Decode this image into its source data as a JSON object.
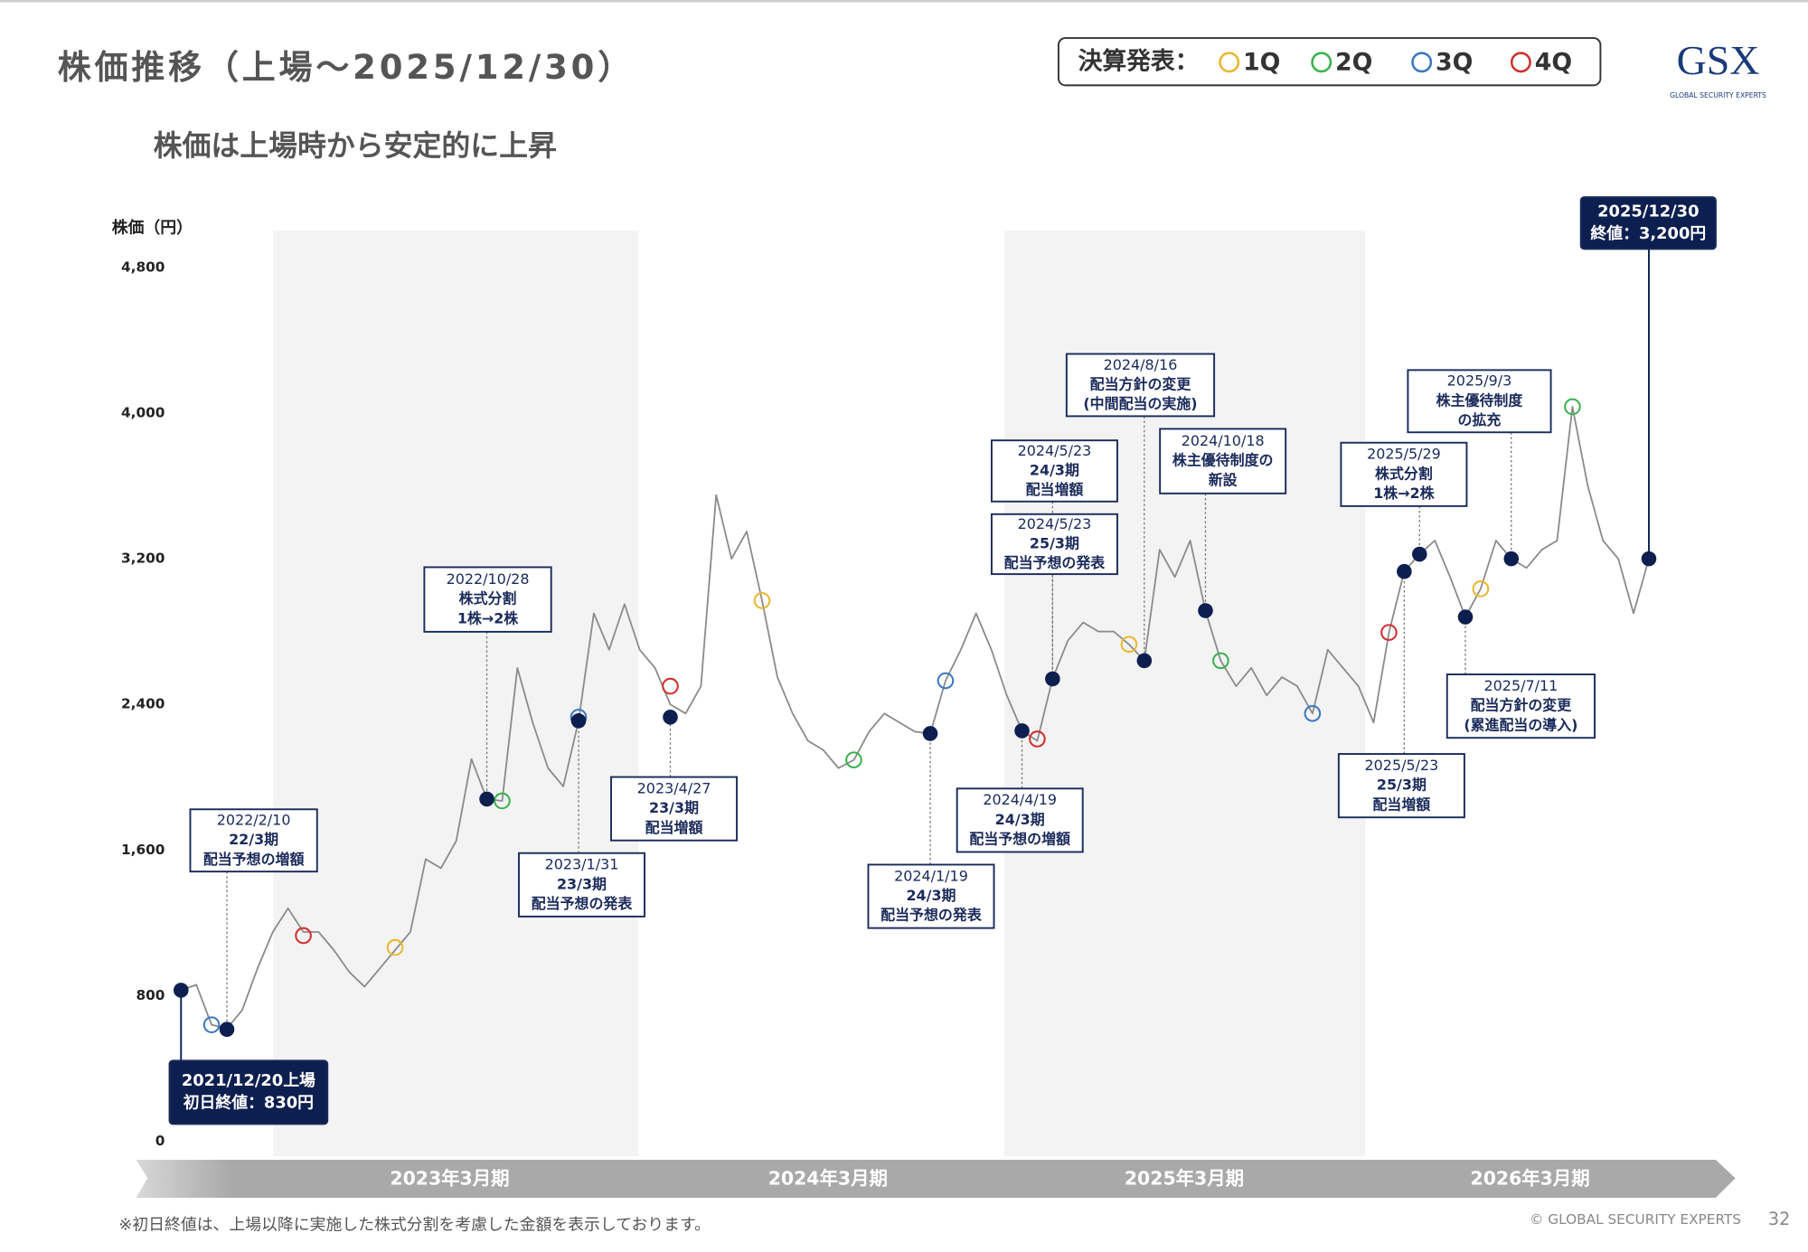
{
  "chart_data": {
    "type": "line",
    "title": "株価推移（上場～2025/12/30）",
    "subtitle": "株価は上場時から安定的に上昇",
    "y_label": "株価（円）",
    "legend_title": "決算発表：",
    "logo": "GSX",
    "logo_sub": "GLOBAL SECURITY EXPERTS",
    "footnote": "※初日終値は、上場以降に実施した株式分割を考慮した金額を表示しております。",
    "copyright": "© GLOBAL SECURITY EXPERTS",
    "page": "32",
    "periods": [
      "2023年3月期",
      "2024年3月期",
      "2025年3月期",
      "2026年3月期"
    ],
    "ylim": [
      0,
      4800
    ],
    "yticks": [
      0,
      800,
      {
        "value": 1600,
        "label": "1,600"
      },
      {
        "value": 2400,
        "label": "2,400"
      },
      {
        "value": 3200,
        "label": "3,200"
      },
      {
        "value": 4000,
        "label": "4,000"
      },
      {
        "value": 4800,
        "label": "4,800"
      }
    ],
    "categories": [
      null,
      null,
      null,
      null,
      null,
      null,
      null,
      null,
      null,
      null,
      null,
      null,
      null,
      null,
      null,
      null,
      null,
      null,
      null,
      null,
      null,
      null,
      null,
      null,
      null,
      null,
      null,
      null,
      null,
      null,
      null,
      null,
      null,
      null,
      null,
      null,
      null,
      null,
      null,
      null,
      null,
      null,
      null,
      null,
      null,
      null,
      null,
      null,
      null,
      null,
      null,
      null,
      null,
      null,
      null,
      null,
      null,
      null,
      null,
      null,
      null,
      null,
      null,
      null,
      null,
      null,
      null,
      null,
      null,
      null,
      null,
      null,
      null,
      null,
      null,
      null,
      null,
      null,
      null,
      null,
      null,
      null,
      null,
      null,
      null,
      null,
      null,
      null,
      null,
      null,
      null,
      null,
      null,
      null,
      null,
      null,
      null
    ],
    "series": [
      {
        "color": "#8a8a8a",
        "values": [
          830,
          860,
          640,
          620,
          720,
          950,
          1150,
          1280,
          1150,
          1150,
          1050,
          930,
          850,
          950,
          1050,
          1150,
          1550,
          1500,
          1650,
          2100,
          1880,
          1870,
          2600,
          2300,
          2050,
          1950,
          2310,
          2900,
          2700,
          2950,
          2700,
          2600,
          2400,
          2350,
          2500,
          3550,
          3200,
          3350,
          2970,
          2550,
          2350,
          2200,
          2150,
          2050,
          2095,
          2250,
          2350,
          2300,
          2250,
          2240,
          2530,
          2700,
          2900,
          2700,
          2450,
          2255,
          2200,
          2540,
          2750,
          2850,
          2800,
          2800,
          2730,
          2640,
          3250,
          3100,
          3300,
          2915,
          2640,
          2500,
          2600,
          2450,
          2550,
          2500,
          2350,
          2700,
          2600,
          2500,
          2300,
          2795,
          3130,
          3225,
          3300,
          3100,
          2880,
          3035,
          3300,
          3200,
          3150,
          3250,
          3300,
          4035,
          3600,
          3300,
          3200,
          2900,
          3200
        ]
      },
      {
        "name": "1Q",
        "color": "#e8b830",
        "values": [
          null,
          null,
          null,
          null,
          null,
          null,
          null,
          null,
          null,
          null,
          null,
          null,
          null,
          null,
          1065,
          null,
          null,
          null,
          null,
          null,
          null,
          null,
          null,
          null,
          null,
          null,
          null,
          null,
          null,
          null,
          null,
          null,
          null,
          null,
          null,
          null,
          null,
          null,
          2970,
          null,
          null,
          null,
          null,
          null,
          null,
          null,
          null,
          null,
          null,
          null,
          null,
          null,
          null,
          null,
          null,
          null,
          null,
          null,
          null,
          null,
          null,
          null,
          2730,
          null,
          null,
          null,
          null,
          null,
          null,
          null,
          null,
          null,
          null,
          null,
          null,
          null,
          null,
          null,
          null,
          null,
          null,
          null,
          null,
          null,
          null,
          3035,
          null,
          null,
          null,
          null,
          null,
          null,
          null,
          null,
          null,
          null,
          null
        ]
      },
      {
        "name": "2Q",
        "color": "#3cb050",
        "values": [
          null,
          null,
          null,
          null,
          null,
          null,
          null,
          null,
          null,
          null,
          null,
          null,
          null,
          null,
          null,
          null,
          null,
          null,
          null,
          null,
          null,
          1870,
          null,
          null,
          null,
          null,
          null,
          null,
          null,
          null,
          null,
          null,
          null,
          null,
          null,
          null,
          null,
          null,
          null,
          null,
          null,
          null,
          null,
          null,
          2095,
          null,
          null,
          null,
          null,
          null,
          null,
          null,
          null,
          null,
          null,
          null,
          null,
          null,
          null,
          null,
          null,
          null,
          null,
          null,
          null,
          null,
          null,
          null,
          2640,
          null,
          null,
          null,
          null,
          null,
          null,
          null,
          null,
          null,
          null,
          null,
          null,
          null,
          null,
          null,
          null,
          null,
          null,
          null,
          null,
          null,
          null,
          4035,
          null,
          null,
          null,
          null,
          null
        ]
      },
      {
        "name": "3Q",
        "color": "#3a78c0",
        "values": [
          null,
          null,
          640,
          null,
          null,
          null,
          null,
          null,
          null,
          null,
          null,
          null,
          null,
          null,
          null,
          null,
          null,
          null,
          null,
          null,
          null,
          null,
          null,
          null,
          null,
          null,
          2330,
          null,
          null,
          null,
          null,
          null,
          null,
          null,
          null,
          null,
          null,
          null,
          null,
          null,
          null,
          null,
          null,
          null,
          null,
          null,
          null,
          null,
          null,
          null,
          2530,
          null,
          null,
          null,
          null,
          null,
          null,
          null,
          null,
          null,
          null,
          null,
          null,
          null,
          null,
          null,
          null,
          null,
          null,
          null,
          null,
          null,
          null,
          null,
          2350,
          null,
          null,
          null,
          null,
          null,
          null,
          null,
          null,
          null,
          null,
          null,
          null,
          null,
          null,
          null,
          null,
          null,
          null,
          null,
          null,
          null,
          null
        ]
      },
      {
        "name": "4Q",
        "color": "#d03030",
        "values": [
          null,
          null,
          null,
          null,
          null,
          null,
          null,
          null,
          1130,
          null,
          null,
          null,
          null,
          null,
          null,
          null,
          null,
          null,
          null,
          null,
          null,
          null,
          null,
          null,
          null,
          null,
          null,
          null,
          null,
          null,
          null,
          null,
          2500,
          null,
          null,
          null,
          null,
          null,
          null,
          null,
          null,
          null,
          null,
          null,
          null,
          null,
          null,
          null,
          null,
          null,
          null,
          null,
          null,
          null,
          null,
          null,
          2210,
          null,
          null,
          null,
          null,
          null,
          null,
          null,
          null,
          null,
          null,
          null,
          null,
          null,
          null,
          null,
          null,
          null,
          null,
          null,
          null,
          null,
          null,
          2795,
          null,
          null,
          null,
          null,
          null,
          null,
          null,
          null,
          null,
          null,
          null,
          null,
          null,
          null,
          null,
          null,
          null
        ]
      },
      {
        "color": "#0d1f4f",
        "values": [
          830,
          null,
          null,
          615,
          null,
          null,
          null,
          null,
          null,
          null,
          null,
          null,
          null,
          null,
          null,
          null,
          null,
          null,
          null,
          null,
          1880,
          null,
          null,
          null,
          null,
          null,
          2310,
          null,
          null,
          null,
          null,
          null,
          2330,
          null,
          null,
          null,
          null,
          null,
          null,
          null,
          null,
          null,
          null,
          null,
          null,
          null,
          null,
          null,
          null,
          2240,
          null,
          null,
          null,
          null,
          null,
          2255,
          null,
          2540,
          null,
          null,
          null,
          null,
          null,
          2640,
          null,
          null,
          null,
          2915,
          null,
          null,
          null,
          null,
          null,
          null,
          null,
          null,
          null,
          null,
          null,
          null,
          3130,
          3225,
          null,
          null,
          2880,
          null,
          null,
          3200,
          null,
          null,
          null,
          null,
          null,
          null,
          null,
          null,
          3200
        ]
      }
    ],
    "annotations": [
      {
        "lines": [
          "2021/12/20上場",
          "初日終値：830円"
        ]
      },
      {
        "lines": [
          "2022/2/10",
          "22/3期",
          "配当予想の増額"
        ]
      },
      {
        "lines": [
          "2022/10/28",
          "株式分割",
          "1株→2株"
        ]
      },
      {
        "lines": [
          "2023/1/31",
          "23/3期",
          "配当予想の発表"
        ]
      },
      {
        "lines": [
          "2023/4/27",
          "23/3期",
          "配当増額"
        ]
      },
      {
        "lines": [
          "2024/1/19",
          "24/3期",
          "配当予想の発表"
        ]
      },
      {
        "lines": [
          "2024/4/19",
          "24/3期",
          "配当予想の増額"
        ]
      },
      {
        "lines": [
          "2024/5/23",
          "24/3期",
          "配当増額"
        ]
      },
      {
        "lines": [
          "2024/5/23",
          "25/3期",
          "配当予想の発表"
        ]
      },
      {
        "lines": [
          "2024/8/16",
          "配当方針の変更",
          "(中間配当の実施)"
        ]
      },
      {
        "lines": [
          "2024/10/18",
          "株主優待制度の",
          "新設"
        ]
      },
      {
        "lines": [
          "2025/5/29",
          "株式分割",
          "1株→2株"
        ]
      },
      {
        "lines": [
          "2025/5/23",
          "25/3期",
          "配当増額"
        ]
      },
      {
        "lines": [
          "2025/9/3",
          "株主優待制度",
          "の拡充"
        ]
      },
      {
        "lines": [
          "2025/7/11",
          "配当方針の変更",
          "(累進配当の導入)"
        ]
      },
      {
        "lines": [
          "2025/12/30",
          "終値：3,200円"
        ]
      }
    ]
  }
}
